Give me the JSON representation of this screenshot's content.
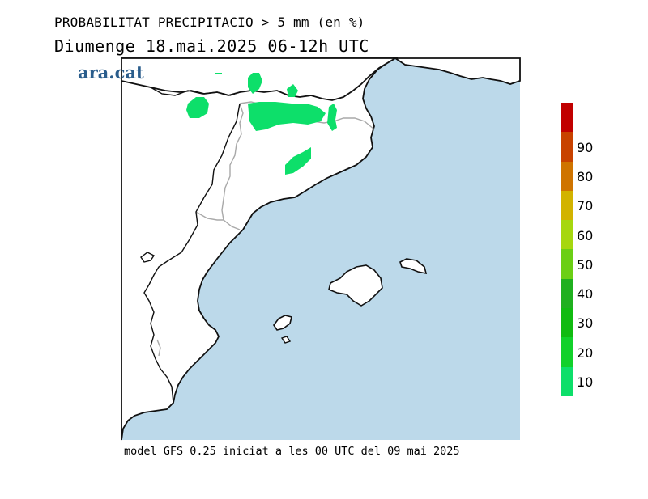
{
  "header": {
    "title": "PROBABILITAT PRECIPITACIO > 5 mm (en %)",
    "subtitle": "Diumenge  18.mai.2025 06-12h UTC",
    "logo_text": "ara.cat"
  },
  "footer": {
    "model_info": "model GFS 0.25 iniciat a les 00 UTC del 09 mai 2025"
  },
  "colors": {
    "sea": "#bcd9ea",
    "land": "#ffffff",
    "coast": "#111111",
    "border": "#a9a9a9",
    "precip_10_20": "#0ddf6a"
  },
  "legend": {
    "bins": [
      {
        "from": 10,
        "to": 20,
        "color": "#0ddf6a"
      },
      {
        "from": 20,
        "to": 30,
        "color": "#11d12a"
      },
      {
        "from": 30,
        "to": 40,
        "color": "#10bb10"
      },
      {
        "from": 40,
        "to": 50,
        "color": "#1fb01f"
      },
      {
        "from": 50,
        "to": 60,
        "color": "#6bcf15"
      },
      {
        "from": 60,
        "to": 70,
        "color": "#a6d70f"
      },
      {
        "from": 70,
        "to": 80,
        "color": "#d2b300"
      },
      {
        "from": 80,
        "to": 90,
        "color": "#cf7400"
      },
      {
        "from": 90,
        "to": 100,
        "color": "#c84200"
      },
      {
        "from": 100,
        "to": 110,
        "color": "#c10000"
      }
    ],
    "labels": [
      "10",
      "20",
      "30",
      "40",
      "50",
      "60",
      "70",
      "80",
      "90"
    ]
  }
}
